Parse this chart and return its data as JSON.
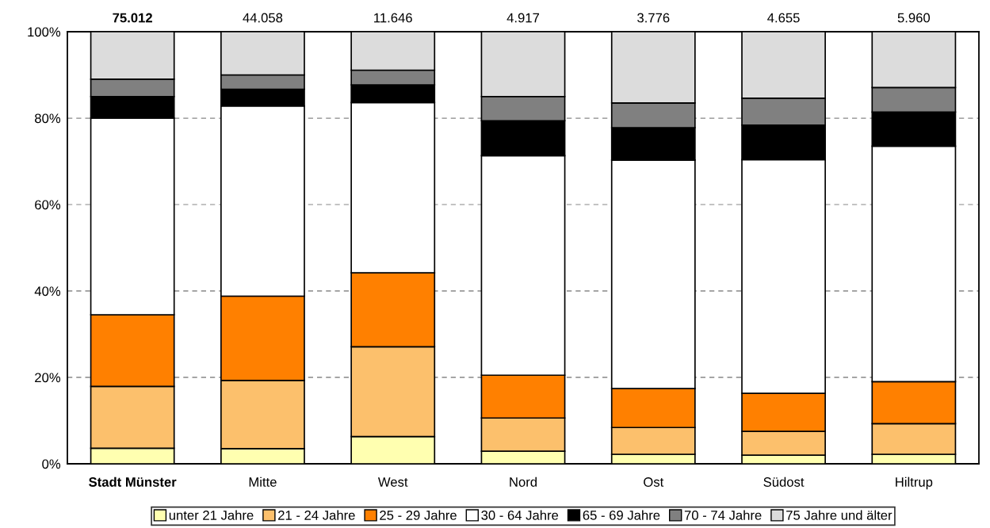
{
  "chart_data": {
    "type": "bar",
    "stacked": true,
    "categories": [
      "Stadt Münster",
      "Mitte",
      "West",
      "Nord",
      "Ost",
      "Südost",
      "Hiltrup"
    ],
    "series": [
      {
        "name": "unter 21 Jahre",
        "color": "#ffffb0",
        "values": [
          3.6,
          3.5,
          6.3,
          2.9,
          2.2,
          2.0,
          2.2
        ]
      },
      {
        "name": "21 - 24 Jahre",
        "color": "#fcc06c",
        "values": [
          14.3,
          15.8,
          20.8,
          7.7,
          6.2,
          5.5,
          7.1
        ]
      },
      {
        "name": "25 - 29 Jahre",
        "color": "#ff8000",
        "values": [
          16.6,
          19.5,
          17.1,
          9.9,
          9.0,
          8.8,
          9.7
        ]
      },
      {
        "name": "30 - 64 Jahre",
        "color": "#ffffff",
        "values": [
          45.5,
          44.0,
          39.4,
          50.8,
          52.9,
          54.1,
          54.5
        ]
      },
      {
        "name": "65 - 69 Jahre",
        "color": "#000000",
        "values": [
          5.0,
          3.9,
          4.1,
          8.1,
          7.5,
          8.0,
          7.9
        ]
      },
      {
        "name": "70 - 74 Jahre",
        "color": "#808080",
        "values": [
          4.0,
          3.3,
          3.4,
          5.6,
          5.7,
          6.2,
          5.7
        ]
      },
      {
        "name": "75 Jahre und älter",
        "color": "#dcdcdc",
        "values": [
          11.0,
          10.0,
          8.9,
          15.0,
          16.5,
          15.4,
          12.9
        ]
      }
    ],
    "annotations": [
      {
        "text": "75.012",
        "x": "Stadt Münster",
        "y": 100
      },
      {
        "text": "44.058",
        "x": "Mitte",
        "y": 100
      },
      {
        "text": "11.646",
        "x": "West",
        "y": 100
      },
      {
        "text": "4.917",
        "x": "Nord",
        "y": 100
      },
      {
        "text": "3.776",
        "x": "Ost",
        "y": 100
      },
      {
        "text": "4.655",
        "x": "Südost",
        "y": 100
      },
      {
        "text": "5.960",
        "x": "Hiltrup",
        "y": 100
      }
    ],
    "ylim": [
      0,
      100
    ],
    "yticks": [
      {
        "value": 0,
        "label": "0%"
      },
      {
        "value": 20,
        "label": "20%"
      },
      {
        "value": 40,
        "label": "40%"
      },
      {
        "value": 60,
        "label": "60%"
      },
      {
        "value": 80,
        "label": "80%"
      },
      {
        "value": 100,
        "label": "100%"
      }
    ],
    "grid": "y",
    "legend": "bottom"
  }
}
